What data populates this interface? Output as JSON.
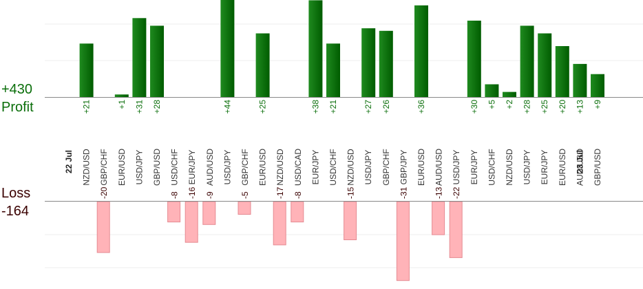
{
  "totals": {
    "profit_value": "+430",
    "profit_label": "Profit",
    "loss_label": "Loss",
    "loss_value": "-164"
  },
  "colors": {
    "profit_bar": "#0e720e",
    "loss_bar": "#ffb3b8",
    "axis": "#888888",
    "grid": "#eeeeee"
  },
  "chart_data": {
    "type": "bar",
    "ylim_profit": [
      0,
      60
    ],
    "ylim_loss": [
      -36,
      0
    ],
    "grid": true,
    "dates": [
      {
        "label": "22 Jul",
        "slot": 0
      },
      {
        "label": "23 Jul",
        "slot": 29
      }
    ],
    "trades": [
      {
        "pair": "NZD/USD",
        "value": 21,
        "label": "+21"
      },
      {
        "pair": "GBP/CHF",
        "value": -20,
        "label": "-20"
      },
      {
        "pair": "EUR/USD",
        "value": 1,
        "label": "+1"
      },
      {
        "pair": "USD/JPY",
        "value": 31,
        "label": "+31"
      },
      {
        "pair": "GBP/USD",
        "value": 28,
        "label": "+28"
      },
      {
        "pair": "USD/CHF",
        "value": -8,
        "label": "-8"
      },
      {
        "pair": "EUR/JPY",
        "value": -16,
        "label": "-16"
      },
      {
        "pair": "AUD/USD",
        "value": -9,
        "label": "-9"
      },
      {
        "pair": "USD/JPY",
        "value": 44,
        "label": "+44"
      },
      {
        "pair": "GBP/CHF",
        "value": -5,
        "label": "-5"
      },
      {
        "pair": "EUR/USD",
        "value": 25,
        "label": "+25"
      },
      {
        "pair": "NZD/USD",
        "value": -17,
        "label": "-17"
      },
      {
        "pair": "USD/CAD",
        "value": -8,
        "label": "-8"
      },
      {
        "pair": "EUR/JPY",
        "value": 38,
        "label": "+38"
      },
      {
        "pair": "USD/CHF",
        "value": 21,
        "label": "+21"
      },
      {
        "pair": "NZD/USD",
        "value": -15,
        "label": "-15"
      },
      {
        "pair": "USD/JPY",
        "value": 27,
        "label": "+27"
      },
      {
        "pair": "GBP/CHF",
        "value": 26,
        "label": "+26"
      },
      {
        "pair": "GBP/JPY",
        "value": -31,
        "label": "-31"
      },
      {
        "pair": "EUR/USD",
        "value": 36,
        "label": "+36"
      },
      {
        "pair": "AUD/USD",
        "value": -13,
        "label": "-13"
      },
      {
        "pair": "USD/JPY",
        "value": -22,
        "label": "-22"
      },
      {
        "pair": "EUR/JPY",
        "value": 30,
        "label": "+30"
      },
      {
        "pair": "USD/CHF",
        "value": 5,
        "label": "+5"
      },
      {
        "pair": "NZD/USD",
        "value": 2,
        "label": "+2"
      },
      {
        "pair": "USD/JPY",
        "value": 28,
        "label": "+28"
      },
      {
        "pair": "EUR/JPY",
        "value": 25,
        "label": "+25"
      },
      {
        "pair": "EUR/USD",
        "value": 20,
        "label": "+20"
      },
      {
        "pair": "AUD/USD",
        "value": 13,
        "label": "+13"
      },
      {
        "pair": "GBP/USD",
        "value": 9,
        "label": "+9"
      }
    ]
  }
}
